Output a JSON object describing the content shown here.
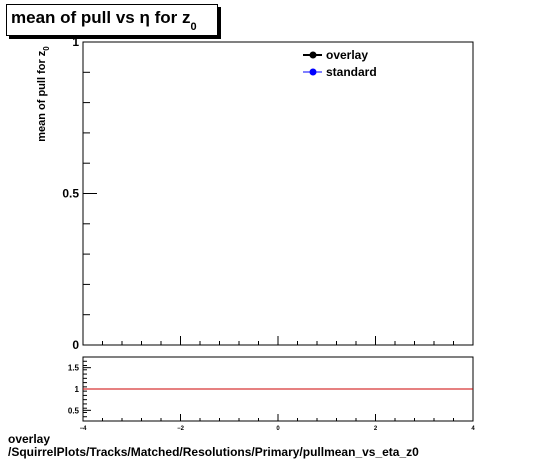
{
  "title": {
    "main": "mean of pull vs  η for z",
    "sub": "0"
  },
  "ylabel": {
    "main": "mean of pull for z",
    "sub": "0"
  },
  "footer": {
    "line1": "overlay",
    "line2": "/SquirrelPlots/Tracks/Matched/Resolutions/Primary/pullmean_vs_eta_z0"
  },
  "legend": [
    {
      "name": "overlay",
      "color": "#000000"
    },
    {
      "name": "standard",
      "color": "#0000ff"
    }
  ],
  "chart_data": [
    {
      "type": "line",
      "ylim": [
        0,
        1
      ],
      "y_ticks": [
        "0",
        "0.5",
        "1"
      ],
      "series": [
        {
          "name": "overlay",
          "x": [],
          "y": []
        },
        {
          "name": "standard",
          "x": [],
          "y": []
        }
      ],
      "legend_position": "top-right",
      "grid": false
    },
    {
      "type": "line",
      "xlim": [
        -4,
        4
      ],
      "ylim": [
        0.25,
        1.75
      ],
      "x_ticks": [
        "−4",
        "−2",
        "0",
        "2",
        "4"
      ],
      "y_ticks": [
        "0.5",
        "1",
        "1.5"
      ],
      "reference_line": {
        "y": 1,
        "color": "#cc0000"
      },
      "grid": false
    }
  ]
}
